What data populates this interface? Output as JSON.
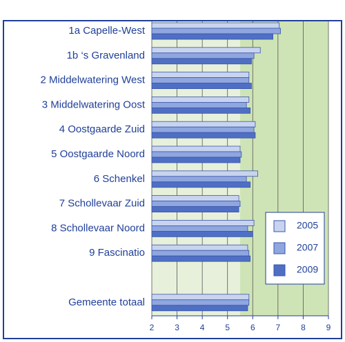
{
  "chart_data": {
    "type": "bar",
    "orientation": "horizontal",
    "categories": [
      "1a  Capelle-West",
      "1b  ‘s Gravenland",
      "2  Middelwatering West",
      "3 Middelwatering Oost",
      "4  Oostgaarde Zuid",
      "5  Oostgaarde Noord",
      "6  Schenkel",
      "7  Schollevaar Zuid",
      "8 Schollevaar Noord",
      "9  Fascinatio",
      null,
      "Gemeente totaal"
    ],
    "series": [
      {
        "name": "2005",
        "color": "#c8d4ef",
        "values": [
          7.05,
          6.3,
          5.85,
          5.85,
          6.1,
          5.5,
          6.2,
          5.45,
          6.05,
          5.8,
          null,
          5.85
        ]
      },
      {
        "name": "2007",
        "color": "#8fa6df",
        "values": [
          7.1,
          6.05,
          5.85,
          5.75,
          6.05,
          5.55,
          5.75,
          5.5,
          5.8,
          5.85,
          null,
          5.85
        ]
      },
      {
        "name": "2009",
        "color": "#4f6fc4",
        "values": [
          6.8,
          5.95,
          5.95,
          5.9,
          6.1,
          5.5,
          5.9,
          5.45,
          6.0,
          5.9,
          null,
          5.8
        ]
      }
    ],
    "xlim": [
      2,
      9
    ],
    "xticks": [
      2,
      3,
      4,
      5,
      6,
      7,
      8,
      9
    ],
    "grid": true,
    "legend": "lower right",
    "bands": [
      {
        "from": 2,
        "to": 5.5,
        "color": "#e7f0da"
      },
      {
        "from": 5.5,
        "to": 9,
        "color": "#cfe4b6"
      }
    ]
  }
}
